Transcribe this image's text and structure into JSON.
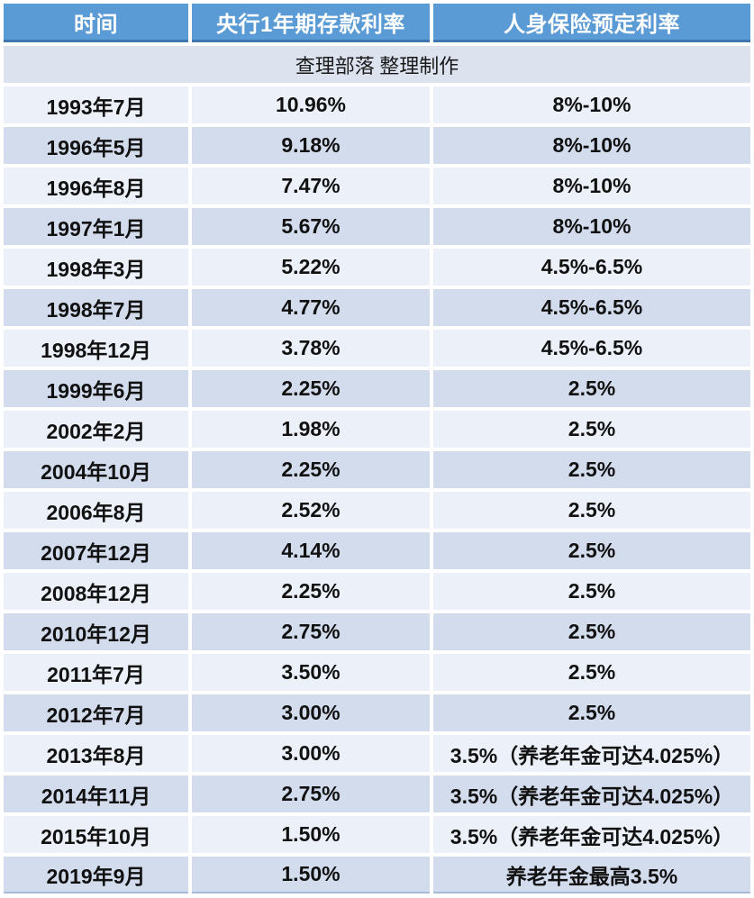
{
  "chart_data": {
    "type": "table",
    "columns": [
      "时间",
      "央行1年期存款利率",
      "人身保险预定利率"
    ],
    "credit_row": "查理部落 整理制作",
    "rows": [
      {
        "time": "1993年7月",
        "bank_rate": "10.96%",
        "insurance_rate": "8%-10%"
      },
      {
        "time": "1996年5月",
        "bank_rate": "9.18%",
        "insurance_rate": "8%-10%"
      },
      {
        "time": "1996年8月",
        "bank_rate": "7.47%",
        "insurance_rate": "8%-10%"
      },
      {
        "time": "1997年1月",
        "bank_rate": "5.67%",
        "insurance_rate": "8%-10%"
      },
      {
        "time": "1998年3月",
        "bank_rate": "5.22%",
        "insurance_rate": "4.5%-6.5%"
      },
      {
        "time": "1998年7月",
        "bank_rate": "4.77%",
        "insurance_rate": "4.5%-6.5%"
      },
      {
        "time": "1998年12月",
        "bank_rate": "3.78%",
        "insurance_rate": "4.5%-6.5%"
      },
      {
        "time": "1999年6月",
        "bank_rate": "2.25%",
        "insurance_rate": "2.5%"
      },
      {
        "time": "2002年2月",
        "bank_rate": "1.98%",
        "insurance_rate": "2.5%"
      },
      {
        "time": "2004年10月",
        "bank_rate": "2.25%",
        "insurance_rate": "2.5%"
      },
      {
        "time": "2006年8月",
        "bank_rate": "2.52%",
        "insurance_rate": "2.5%"
      },
      {
        "time": "2007年12月",
        "bank_rate": "4.14%",
        "insurance_rate": "2.5%"
      },
      {
        "time": "2008年12月",
        "bank_rate": "2.25%",
        "insurance_rate": "2.5%"
      },
      {
        "time": "2010年12月",
        "bank_rate": "2.75%",
        "insurance_rate": "2.5%"
      },
      {
        "time": "2011年7月",
        "bank_rate": "3.50%",
        "insurance_rate": "2.5%"
      },
      {
        "time": "2012年7月",
        "bank_rate": "3.00%",
        "insurance_rate": "2.5%"
      },
      {
        "time": "2013年8月",
        "bank_rate": "3.00%",
        "insurance_rate": "3.5%（养老年金可达4.025%）"
      },
      {
        "time": "2014年11月",
        "bank_rate": "2.75%",
        "insurance_rate": "3.5%（养老年金可达4.025%）"
      },
      {
        "time": "2015年10月",
        "bank_rate": "1.50%",
        "insurance_rate": "3.5%（养老年金可达4.025%）"
      },
      {
        "time": "2019年9月",
        "bank_rate": "1.50%",
        "insurance_rate": "养老年金最高3.5%"
      }
    ]
  },
  "colors": {
    "header_bg": "#5B9BD5",
    "header_border": "#3F76AE",
    "row_light": "#ECF1F9",
    "row_dark": "#D2DCEC",
    "credit_bg": "#DCE3EF",
    "header_text": "#FFFFFF",
    "text": "#111111",
    "last_row_border": "#A7BAD8"
  }
}
